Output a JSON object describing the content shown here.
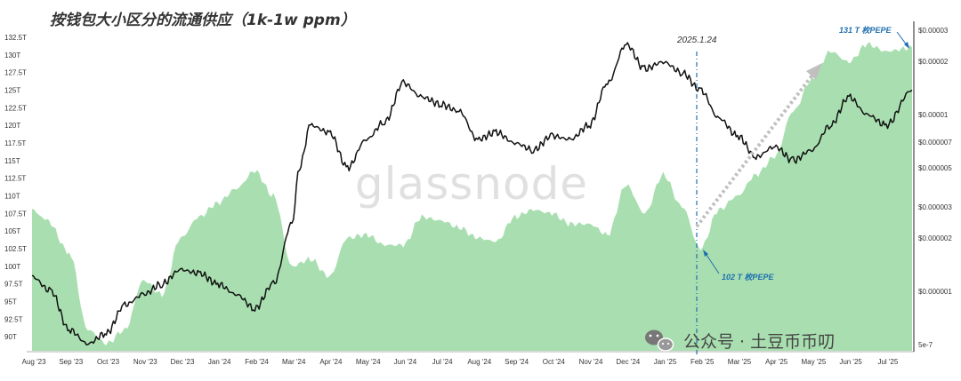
{
  "chart_data": {
    "type": "line",
    "title": "按钱包大小区分的流通供应（1k-1w ppm）",
    "watermark": "glassnode",
    "x_tick_labels": [
      "Aug '23",
      "Sep '23",
      "Oct '23",
      "Nov '23",
      "Dec '23",
      "Jan '24",
      "Feb '24",
      "Mar '24",
      "Apr '24",
      "May '24",
      "Jun '24",
      "Jul '24",
      "Aug '24",
      "Sep '24",
      "Oct '24",
      "Nov '24",
      "Dec '24",
      "Jan '25",
      "Feb '25",
      "Mar '25",
      "Apr '25",
      "May '25",
      "Jun '25",
      "Jul '25"
    ],
    "left_axis": {
      "ticks": [
        "132.5T",
        "130T",
        "127.5T",
        "125T",
        "122.5T",
        "120T",
        "117.5T",
        "115T",
        "112.5T",
        "110T",
        "107.5T",
        "105T",
        "102.5T",
        "100T",
        "97.5T",
        "95T",
        "92.5T",
        "90T"
      ],
      "range": [
        88,
        133.5
      ]
    },
    "right_axis": {
      "scale": "log",
      "ticks": [
        "$0.00003",
        "$0.00002",
        "$0.00001",
        "$0.000007",
        "$0.000005",
        "$0.000003",
        "$0.000002",
        "$0.000001",
        "5e-7"
      ]
    },
    "series": [
      {
        "type": "area",
        "color": "#a9dfb0",
        "x": [
          0,
          0.4,
          1,
          1.5,
          2,
          2.5,
          3,
          3.5,
          4,
          4.5,
          5,
          5.5,
          6,
          6.5,
          7,
          7.5,
          8,
          8.5,
          9,
          9.5,
          10,
          10.5,
          11,
          11.5,
          12,
          12.5,
          13,
          13.5,
          14,
          14.5,
          15,
          15.5,
          16,
          16.5,
          17,
          17.5,
          18,
          18.5,
          19,
          19.5,
          20,
          20.5,
          21,
          21.5,
          22,
          22.5,
          23,
          23.7
        ],
        "values": [
          108,
          106.5,
          102,
          91,
          89,
          91,
          98,
          96,
          104,
          107,
          109,
          111,
          113.5,
          110,
          100,
          101,
          98.5,
          104,
          104.5,
          103,
          103,
          107,
          106.5,
          105.5,
          104,
          103.5,
          107,
          108,
          107.5,
          106,
          106,
          104.5,
          111.5,
          107.5,
          113,
          108.5,
          102.5,
          108,
          110,
          113,
          115.5,
          122,
          126.5,
          130.5,
          129,
          131.5,
          130.5,
          131
        ]
      },
      {
        "type": "line",
        "color": "#111111",
        "axis": "left_equivalent",
        "x": [
          0,
          0.5,
          1,
          1.5,
          2,
          2.5,
          3,
          3.5,
          4,
          4.5,
          5,
          5.5,
          6,
          6.5,
          7,
          7.2,
          7.5,
          8,
          8.5,
          9,
          9.5,
          10,
          10.5,
          11,
          11.5,
          12,
          12.5,
          13,
          13.5,
          14,
          14.5,
          15,
          15.5,
          16,
          16.5,
          17,
          17.5,
          18,
          18.5,
          19,
          19.5,
          20,
          20.5,
          21,
          21.5,
          22,
          22.5,
          23,
          23.7
        ],
        "values": [
          98.5,
          96.5,
          91,
          89,
          90.5,
          94.5,
          96,
          97.5,
          99.5,
          99,
          97.5,
          96,
          94,
          97.5,
          106,
          114,
          120,
          119,
          114,
          118,
          120.5,
          126,
          124,
          123,
          122,
          118,
          119,
          117.5,
          116.5,
          118.5,
          118,
          120,
          126,
          131.5,
          128,
          129,
          127.5,
          125,
          121,
          118.5,
          115.5,
          117,
          115,
          116.5,
          120,
          124,
          121.5,
          120,
          125
        ]
      }
    ],
    "annotations": {
      "date_label": "2025.1.24",
      "low_label": "102 T 枚PEPE",
      "high_label": "131 T 枚PEPE",
      "wechat_label": "公众号 · 土豆币币叨"
    },
    "legend": "none",
    "grid": false
  }
}
